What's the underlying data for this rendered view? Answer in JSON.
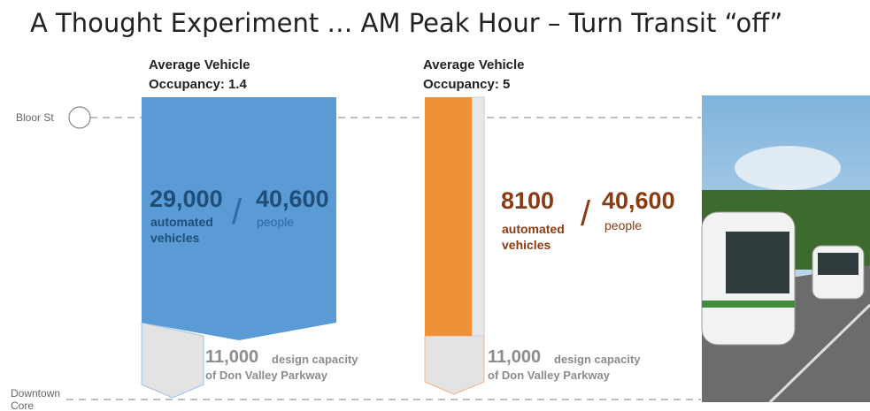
{
  "title": "A Thought Experiment … AM Peak Hour – Turn Transit “off”",
  "stations": {
    "top": "Bloor St",
    "bottom": [
      "Downtown",
      "Core"
    ]
  },
  "scenarios": [
    {
      "heading": [
        "Average Vehicle",
        "Occupancy: 1.4"
      ],
      "vehicles": "29,000",
      "vehicles_label": [
        "automated",
        "vehicles"
      ],
      "separator": "/",
      "people": "40,600",
      "people_label": "people",
      "capacity": "11,000",
      "capacity_label": [
        "design capacity",
        "of Don Valley Parkway"
      ]
    },
    {
      "heading": [
        "Average Vehicle",
        "Occupancy: 5"
      ],
      "vehicles": "8100",
      "vehicles_label": [
        "automated",
        "vehicles"
      ],
      "separator": "/",
      "people": "40,600",
      "people_label": "people",
      "capacity": "11,000",
      "capacity_label": [
        "design capacity",
        "of Don Valley Parkway"
      ]
    }
  ]
}
